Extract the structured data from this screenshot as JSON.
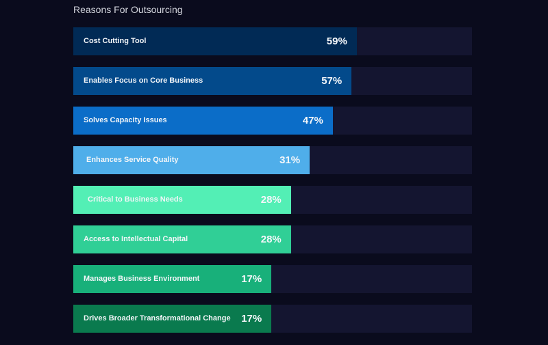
{
  "chart_data": {
    "type": "bar",
    "orientation": "horizontal",
    "title": "Reasons For Outsourcing",
    "categories": [
      "Cost Cutting Tool",
      "Enables Focus on Core Business",
      "Solves Capacity Issues",
      "Enhances Service Quality",
      "Critical to Business Needs",
      "Access to Intellectual Capital",
      "Manages Business Environment",
      "Drives Broader Transformational Change"
    ],
    "values": [
      59,
      57,
      47,
      31,
      28,
      28,
      17,
      17
    ],
    "value_labels": [
      "59%",
      "57%",
      "47%",
      "31%",
      "28%",
      "28%",
      "17%",
      "17%"
    ],
    "bar_fill_percent": [
      71.1,
      69.8,
      65.1,
      59.3,
      54.6,
      54.6,
      49.7,
      49.7
    ],
    "colors": [
      "#012a55",
      "#034a8b",
      "#0b6dc8",
      "#4faeea",
      "#53efb5",
      "#30cf96",
      "#18b07a",
      "#0a7a4e"
    ],
    "xlabel": "",
    "ylabel": "",
    "grid": false
  }
}
